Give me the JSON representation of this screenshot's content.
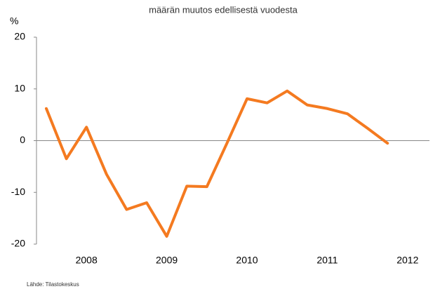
{
  "chart_data": {
    "type": "line",
    "subtitle": "määrän muutos edellisestä vuodesta",
    "y_label": "%",
    "source": "Lähde: Tilastokeskus",
    "categories": [
      null,
      null,
      "2008",
      null,
      null,
      null,
      "2009",
      null,
      null,
      null,
      "2010",
      null,
      null,
      null,
      "2011",
      null,
      null,
      null,
      "2012"
    ],
    "series": [
      {
        "color": "#f47a20",
        "values": [
          6.2,
          -3.5,
          2.6,
          -6.5,
          -13.3,
          -12,
          -18.5,
          -8.8,
          -8.9,
          -0.5,
          8.1,
          7.3,
          9.6,
          6.9,
          6.2,
          5.2,
          2.4,
          -0.5,
          null
        ]
      }
    ],
    "ylim": [
      -20,
      20
    ],
    "yticks": [
      -20,
      -10,
      0,
      10,
      20
    ]
  }
}
